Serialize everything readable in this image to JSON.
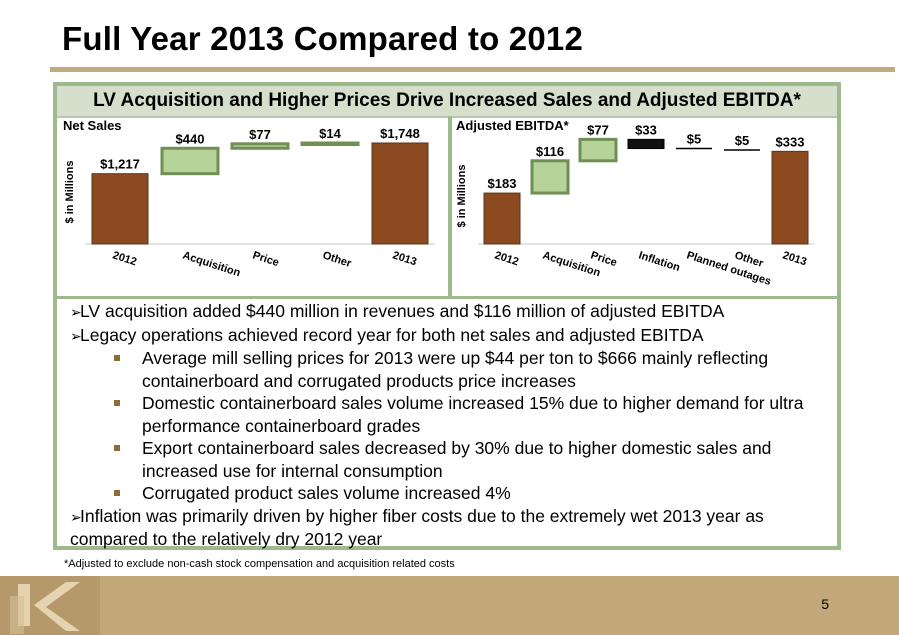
{
  "slide": {
    "title": "Full Year 2013 Compared to 2012",
    "headline": "LV Acquisition and Higher Prices Drive Increased Sales and Adjusted EBITDA*",
    "footnote": "*Adjusted to exclude non-cash stock compensation and acquisition related costs",
    "page_number": "5"
  },
  "bullets": [
    {
      "level": 1,
      "text": "LV acquisition added $440 million in revenues and $116 million of adjusted EBITDA"
    },
    {
      "level": 1,
      "text": "Legacy operations achieved record year for both net sales and adjusted EBITDA"
    },
    {
      "level": 2,
      "text": "Average mill selling prices for 2013 were up $44 per ton to $666 mainly reflecting containerboard  and corrugated products price increases"
    },
    {
      "level": 2,
      "text": "Domestic containerboard sales volume increased 15% due to higher demand for ultra performance containerboard grades"
    },
    {
      "level": 2,
      "text": "Export containerboard sales decreased by 30% due to higher domestic sales and increased use for internal consumption"
    },
    {
      "level": 2,
      "text": "Corrugated product sales volume increased 4%"
    },
    {
      "level": 1,
      "text": "Inflation was primarily driven by higher fiber costs due to the extremely wet 2013 year as compared to the relatively dry 2012 year"
    }
  ],
  "colors": {
    "base_bar": "#8b4a20",
    "increase_bar": "#b6d39a",
    "decrease_bar": "#111111",
    "accent": "#9fb98e",
    "tan": "#c2a878"
  },
  "chart_data": [
    {
      "type": "bar",
      "subtype": "waterfall",
      "title": "Net Sales",
      "ylabel": "$ in Millions",
      "categories": [
        "2012",
        "Acquisition",
        "Price",
        "Other",
        "2013"
      ],
      "values": [
        1217,
        440,
        77,
        14,
        1748
      ],
      "kinds": [
        "total",
        "increase",
        "increase",
        "increase",
        "total"
      ],
      "data_labels": [
        "$1,217",
        "$440",
        "$77",
        "$14",
        "$1,748"
      ]
    },
    {
      "type": "bar",
      "subtype": "waterfall",
      "title": "Adjusted EBITDA*",
      "ylabel": "$ in Millions",
      "categories": [
        "2012",
        "Acquisition",
        "Price",
        "Inflation",
        "Planned outages",
        "Other",
        "2013"
      ],
      "values": [
        183,
        116,
        77,
        -33,
        -5,
        -5,
        333
      ],
      "kinds": [
        "total",
        "increase",
        "increase",
        "decrease",
        "decrease",
        "decrease",
        "total"
      ],
      "data_labels": [
        "$183",
        "$116",
        "$77",
        "$33",
        "$5",
        "$5",
        "$333"
      ]
    }
  ]
}
